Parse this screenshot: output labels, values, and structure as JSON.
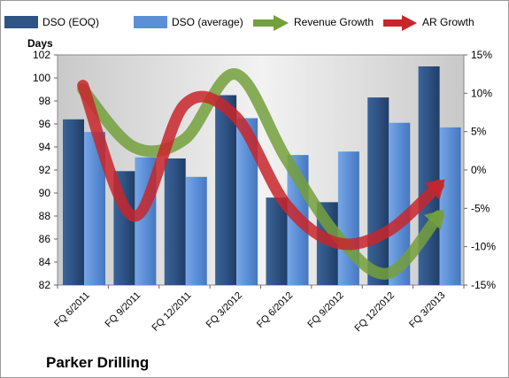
{
  "chart_data": {
    "type": "bar",
    "title": "Parker Drilling",
    "ylabel": "Days",
    "ylim": [
      82,
      102
    ],
    "y_ticks": [
      82,
      84,
      86,
      88,
      90,
      92,
      94,
      96,
      98,
      100,
      102
    ],
    "y2lim": [
      -15,
      15
    ],
    "y2_ticks": [
      "15%",
      "10%",
      "5%",
      "0%",
      "-5%",
      "-10%",
      "-15%"
    ],
    "categories": [
      "FQ 6/2011",
      "FQ 9/2011",
      "FQ 12/2011",
      "FQ 3/2012",
      "FQ 6/2012",
      "FQ 9/2012",
      "FQ 12/2012",
      "FQ 3/2013"
    ],
    "series": [
      {
        "name": "DSO (EOQ)",
        "type": "bar",
        "axis": "left",
        "color": "#2f5486",
        "values": [
          96.4,
          91.9,
          93.0,
          98.5,
          89.6,
          89.2,
          98.3,
          101.0
        ]
      },
      {
        "name": "DSO (average)",
        "type": "bar",
        "axis": "left",
        "color": "#5b8fd6",
        "values": [
          95.3,
          93.1,
          91.4,
          96.5,
          93.3,
          93.6,
          96.1,
          95.7
        ]
      },
      {
        "name": "Revenue Growth",
        "type": "line",
        "axis": "right",
        "color": "#74a03c",
        "unit": "%",
        "values": [
          10.5,
          3.0,
          4.0,
          12.5,
          1.5,
          -8.5,
          -13.5,
          -6.0
        ]
      },
      {
        "name": "AR Growth",
        "type": "line",
        "axis": "right",
        "color": "#c8262c",
        "unit": "%",
        "values": [
          11.0,
          -6.0,
          8.5,
          7.0,
          -4.5,
          -9.5,
          -8.0,
          -2.0
        ]
      }
    ],
    "legend_position": "top",
    "grid": false,
    "plot_background": "#dcdcdc"
  }
}
